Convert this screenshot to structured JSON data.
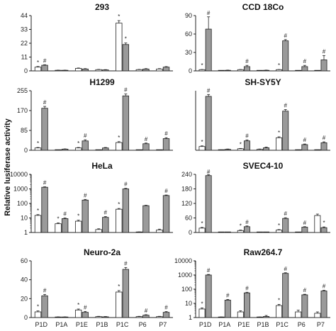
{
  "figure": {
    "ylabel": "Relative lusiferase activity"
  },
  "categories": [
    "P1D",
    "P1A",
    "P1E",
    "P1B",
    "P1C",
    "P6",
    "P7"
  ],
  "colors": {
    "white_bar": "#ffffff",
    "gray_bar": "#9a9a9a",
    "axis": "#222222"
  },
  "chart_data": [
    {
      "type": "bar",
      "title": "293",
      "scale": "linear",
      "ylim": [
        0,
        44
      ],
      "ticks": [
        "0",
        "11",
        "22",
        "33",
        "44"
      ],
      "categories": [
        "P1D",
        "P1A",
        "P1E",
        "P1B",
        "P1C",
        "P6",
        "P7"
      ],
      "series": [
        {
          "values": [
            3,
            0.5,
            2,
            1,
            38,
            1,
            1.5
          ],
          "errors": [
            0.5,
            0.1,
            0.3,
            0.2,
            2,
            0.2,
            0.3
          ]
        },
        {
          "values": [
            4.5,
            0.5,
            1.5,
            0.8,
            21,
            1.5,
            3
          ],
          "errors": [
            0.4,
            0.1,
            0.3,
            0.2,
            1.2,
            0.3,
            0.4
          ]
        }
      ],
      "annotations": [
        {
          "series": 0,
          "index": 0,
          "text": "*"
        },
        {
          "series": 1,
          "index": 0,
          "text": "#"
        },
        {
          "series": 0,
          "index": 4,
          "text": "*"
        },
        {
          "series": 1,
          "index": 4,
          "text": "*"
        }
      ]
    },
    {
      "type": "bar",
      "title": "CCD 18Co",
      "scale": "linear",
      "ylim": [
        0,
        90
      ],
      "ticks": [
        "0",
        "30",
        "60",
        "90"
      ],
      "categories": [
        "P1D",
        "P1A",
        "P1E",
        "P1B",
        "P1C",
        "P6",
        "P7"
      ],
      "series": [
        {
          "values": [
            2,
            0.5,
            2,
            0.5,
            2,
            0.5,
            0.5
          ],
          "errors": [
            0.3,
            0.1,
            0.3,
            0.1,
            0.3,
            0.1,
            0.1
          ]
        },
        {
          "values": [
            68,
            1,
            7,
            1,
            49,
            7,
            18
          ],
          "errors": [
            20,
            0.3,
            2,
            0.3,
            2,
            2,
            7
          ]
        }
      ],
      "annotations": [
        {
          "series": 0,
          "index": 0,
          "text": "*"
        },
        {
          "series": 1,
          "index": 0,
          "text": "#"
        },
        {
          "series": 1,
          "index": 2,
          "text": "#"
        },
        {
          "series": 0,
          "index": 4,
          "text": "*"
        },
        {
          "series": 1,
          "index": 4,
          "text": "#"
        },
        {
          "series": 1,
          "index": 5,
          "text": "#"
        },
        {
          "series": 1,
          "index": 6,
          "text": "#"
        }
      ]
    },
    {
      "type": "bar",
      "title": "H1299",
      "scale": "linear",
      "ylim": [
        0,
        255
      ],
      "ticks": [
        "0",
        "85",
        "170",
        "255"
      ],
      "categories": [
        "P1D",
        "P1A",
        "P1E",
        "P1B",
        "P1C",
        "P6",
        "P7"
      ],
      "series": [
        {
          "values": [
            10,
            1,
            10,
            1,
            33,
            1,
            1
          ],
          "errors": [
            2,
            0.5,
            2,
            0.5,
            4,
            0.5,
            0.5
          ]
        },
        {
          "values": [
            180,
            5,
            40,
            10,
            233,
            28,
            50
          ],
          "errors": [
            8,
            1,
            5,
            2,
            8,
            3,
            4
          ]
        }
      ],
      "annotations": [
        {
          "series": 0,
          "index": 0,
          "text": "*"
        },
        {
          "series": 1,
          "index": 0,
          "text": "#"
        },
        {
          "series": 0,
          "index": 2,
          "text": "*"
        },
        {
          "series": 1,
          "index": 2,
          "text": "#"
        },
        {
          "series": 0,
          "index": 4,
          "text": "*"
        },
        {
          "series": 1,
          "index": 4,
          "text": "#"
        },
        {
          "series": 1,
          "index": 5,
          "text": "#"
        },
        {
          "series": 1,
          "index": 6,
          "text": "#"
        }
      ]
    },
    {
      "type": "bar",
      "title": "SH-SY5Y",
      "scale": "linear",
      "ylim": [
        0,
        190
      ],
      "ticks": [],
      "categories": [
        "P1D",
        "P1A",
        "P1E",
        "P1B",
        "P1C",
        "P6",
        "P7"
      ],
      "series": [
        {
          "values": [
            12,
            1,
            5,
            3,
            40,
            1,
            1
          ],
          "errors": [
            2,
            0.5,
            1,
            1,
            3,
            0.5,
            0.5
          ]
        },
        {
          "values": [
            172,
            3,
            30,
            8,
            125,
            18,
            24
          ],
          "errors": [
            6,
            1,
            3,
            2,
            5,
            2,
            3
          ]
        }
      ],
      "annotations": [
        {
          "series": 0,
          "index": 0,
          "text": "*"
        },
        {
          "series": 1,
          "index": 0,
          "text": "#"
        },
        {
          "series": 0,
          "index": 2,
          "text": "*"
        },
        {
          "series": 1,
          "index": 2,
          "text": "#"
        },
        {
          "series": 0,
          "index": 4,
          "text": "*"
        },
        {
          "series": 1,
          "index": 4,
          "text": "#"
        },
        {
          "series": 1,
          "index": 5,
          "text": "#"
        },
        {
          "series": 1,
          "index": 6,
          "text": "#"
        }
      ]
    },
    {
      "type": "bar",
      "title": "HeLa",
      "scale": "log",
      "ylim": [
        1,
        10000
      ],
      "ticks": [
        "1",
        "10",
        "100",
        "1000",
        "10000"
      ],
      "categories": [
        "P1D",
        "P1A",
        "P1E",
        "P1B",
        "P1C",
        "P6",
        "P7"
      ],
      "series": [
        {
          "values": [
            15,
            4,
            6,
            1.6,
            40,
            1,
            1.5
          ],
          "errors": [
            2,
            0.5,
            1,
            0.2,
            5,
            0.1,
            0.2
          ]
        },
        {
          "values": [
            1300,
            9,
            170,
            11,
            1000,
            70,
            350
          ],
          "errors": [
            100,
            1,
            20,
            1.5,
            100,
            5,
            30
          ]
        }
      ],
      "annotations": [
        {
          "series": 0,
          "index": 0,
          "text": "*"
        },
        {
          "series": 1,
          "index": 0,
          "text": "#"
        },
        {
          "series": 0,
          "index": 1,
          "text": "*"
        },
        {
          "series": 1,
          "index": 1,
          "text": "#"
        },
        {
          "series": 0,
          "index": 2,
          "text": "*"
        },
        {
          "series": 1,
          "index": 2,
          "text": "#"
        },
        {
          "series": 1,
          "index": 3,
          "text": "#"
        },
        {
          "series": 0,
          "index": 4,
          "text": "*"
        },
        {
          "series": 1,
          "index": 4,
          "text": "#"
        },
        {
          "series": 1,
          "index": 6,
          "text": "#"
        }
      ]
    },
    {
      "type": "bar",
      "title": "SVEC4-10",
      "scale": "linear",
      "ylim": [
        0,
        240
      ],
      "ticks": [
        "0",
        "60",
        "120",
        "180",
        "240"
      ],
      "categories": [
        "P1D",
        "P1A",
        "P1E",
        "P1B",
        "P1C",
        "P6",
        "P7"
      ],
      "series": [
        {
          "values": [
            18,
            1,
            8,
            1,
            10,
            1,
            70
          ],
          "errors": [
            3,
            0.5,
            2,
            0.5,
            2,
            0.5,
            6
          ]
        },
        {
          "values": [
            235,
            1,
            24,
            1,
            58,
            22,
            20
          ],
          "errors": [
            4,
            0.5,
            3,
            0.5,
            3,
            2,
            3
          ]
        }
      ],
      "annotations": [
        {
          "series": 0,
          "index": 0,
          "text": "*"
        },
        {
          "series": 1,
          "index": 0,
          "text": "#"
        },
        {
          "series": 0,
          "index": 2,
          "text": "*"
        },
        {
          "series": 1,
          "index": 2,
          "text": "#"
        },
        {
          "series": 0,
          "index": 4,
          "text": "*"
        },
        {
          "series": 1,
          "index": 4,
          "text": "#"
        },
        {
          "series": 1,
          "index": 5,
          "text": "#"
        },
        {
          "series": 1,
          "index": 6,
          "text": "*"
        }
      ]
    },
    {
      "type": "bar",
      "title": "Neuro-2a",
      "scale": "linear",
      "ylim": [
        0,
        60
      ],
      "ticks": [
        "0",
        "20",
        "40",
        "60"
      ],
      "categories": [
        "P1D",
        "P1A",
        "P1E",
        "P1B",
        "P1C",
        "P6",
        "P7"
      ],
      "series": [
        {
          "values": [
            6,
            0.5,
            8,
            1,
            27,
            1,
            1
          ],
          "errors": [
            1,
            0.2,
            1,
            0.3,
            1.5,
            0.3,
            0.3
          ]
        },
        {
          "values": [
            23,
            0.5,
            5.5,
            0.8,
            51,
            2.5,
            5.5
          ],
          "errors": [
            1.5,
            0.2,
            1,
            0.3,
            2,
            0.5,
            0.8
          ]
        }
      ],
      "annotations": [
        {
          "series": 0,
          "index": 0,
          "text": "*"
        },
        {
          "series": 1,
          "index": 0,
          "text": "#"
        },
        {
          "series": 0,
          "index": 2,
          "text": "*"
        },
        {
          "series": 1,
          "index": 2,
          "text": "#"
        },
        {
          "series": 0,
          "index": 4,
          "text": "*"
        },
        {
          "series": 1,
          "index": 4,
          "text": "#"
        },
        {
          "series": 1,
          "index": 5,
          "text": "#"
        },
        {
          "series": 1,
          "index": 6,
          "text": "#"
        }
      ]
    },
    {
      "type": "bar",
      "title": "Raw264.7",
      "scale": "log",
      "ylim": [
        1,
        10000
      ],
      "ticks": [
        "1",
        "10",
        "100",
        "1000",
        "10000"
      ],
      "categories": [
        "P1D",
        "P1A",
        "P1E",
        "P1B",
        "P1C",
        "P6",
        "P7"
      ],
      "series": [
        {
          "values": [
            4,
            1,
            2.5,
            1,
            7,
            2.5,
            2
          ],
          "errors": [
            0.8,
            0.1,
            0.5,
            0.1,
            1.5,
            0.8,
            0.5
          ]
        },
        {
          "values": [
            1000,
            17,
            55,
            1.2,
            1300,
            40,
            75
          ],
          "errors": [
            100,
            2,
            6,
            0.2,
            150,
            4,
            8
          ]
        }
      ],
      "annotations": [
        {
          "series": 0,
          "index": 0,
          "text": "*"
        },
        {
          "series": 1,
          "index": 0,
          "text": "#"
        },
        {
          "series": 1,
          "index": 1,
          "text": "#"
        },
        {
          "series": 1,
          "index": 2,
          "text": "#"
        },
        {
          "series": 0,
          "index": 4,
          "text": "*"
        },
        {
          "series": 1,
          "index": 4,
          "text": "#"
        },
        {
          "series": 1,
          "index": 5,
          "text": "#"
        },
        {
          "series": 1,
          "index": 6,
          "text": "#"
        }
      ]
    }
  ]
}
